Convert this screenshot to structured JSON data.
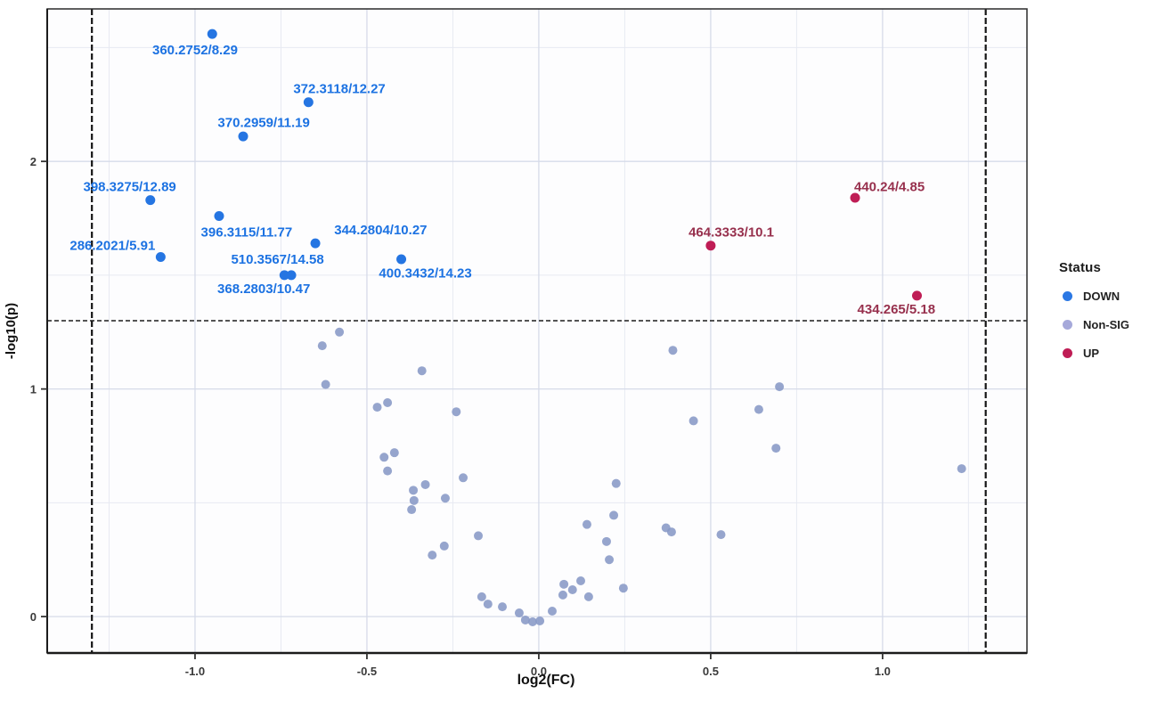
{
  "chart_data": {
    "type": "scatter",
    "title": "",
    "xlabel": "log2(FC)",
    "ylabel": "-log10(p)",
    "xlim": [
      -1.43,
      1.42
    ],
    "ylim": [
      -0.16,
      2.67
    ],
    "x_ticks": {
      "values": [
        -1.0,
        -0.5,
        0.0,
        0.5,
        1.0
      ],
      "labels": [
        "-1.0",
        "-0.5",
        "0.0",
        "0.5",
        "1.0"
      ]
    },
    "y_ticks": {
      "values": [
        0,
        1,
        2
      ],
      "labels": [
        "0",
        "1",
        "2"
      ]
    },
    "x_minor": [
      -1.25,
      -0.75,
      -0.25,
      0.25,
      0.75,
      1.25
    ],
    "y_minor": [
      0.5,
      1.5,
      2.5
    ],
    "grid": "major+minor",
    "thresholds": {
      "vlines": [
        -1.3,
        1.3
      ],
      "hline": 1.3
    },
    "legend": {
      "title": "Status",
      "position": "right",
      "items": [
        {
          "label": "DOWN",
          "color": "#2b78e4"
        },
        {
          "label": "Non-SIG",
          "color": "#a6a9da"
        },
        {
          "label": "UP",
          "color": "#bf1d55"
        }
      ]
    },
    "series": [
      {
        "name": "DOWN",
        "color": "#2575e2",
        "label_color": "#1c72e2",
        "points": [
          {
            "x": -0.95,
            "y": 2.56,
            "label": "360.2752/8.29",
            "label_x": -1.0,
            "label_y": 2.49
          },
          {
            "x": -0.67,
            "y": 2.26,
            "label": "372.3118/12.27",
            "label_x": -0.58,
            "label_y": 2.32
          },
          {
            "x": -0.86,
            "y": 2.11,
            "label": "370.2959/11.19",
            "label_x": -0.8,
            "label_y": 2.17
          },
          {
            "x": -1.13,
            "y": 1.83,
            "label": "398.3275/12.89",
            "label_x": -1.19,
            "label_y": 1.89
          },
          {
            "x": -0.93,
            "y": 1.76,
            "label": "396.3115/11.77",
            "label_x": -0.85,
            "label_y": 1.69
          },
          {
            "x": -0.65,
            "y": 1.64,
            "label": "344.2804/10.27",
            "label_x": -0.46,
            "label_y": 1.7
          },
          {
            "x": -1.1,
            "y": 1.58,
            "label": "286.2021/5.91",
            "label_x": -1.24,
            "label_y": 1.63
          },
          {
            "x": -0.4,
            "y": 1.57,
            "label": "400.3432/14.23",
            "label_x": -0.33,
            "label_y": 1.51
          },
          {
            "x": -0.74,
            "y": 1.5,
            "label": "510.3567/14.58",
            "label_x": -0.76,
            "label_y": 1.57
          },
          {
            "x": -0.72,
            "y": 1.5,
            "label": "368.2803/10.47",
            "label_x": -0.8,
            "label_y": 1.44
          }
        ]
      },
      {
        "name": "UP",
        "color": "#bf1d55",
        "label_color": "#97304d",
        "points": [
          {
            "x": 0.92,
            "y": 1.84,
            "label": "440.24/4.85",
            "label_x": 1.02,
            "label_y": 1.89
          },
          {
            "x": 0.5,
            "y": 1.63,
            "label": "464.3333/10.1",
            "label_x": 0.56,
            "label_y": 1.69
          },
          {
            "x": 1.1,
            "y": 1.41,
            "label": "434.265/5.18",
            "label_x": 1.04,
            "label_y": 1.35
          }
        ]
      },
      {
        "name": "Non-SIG",
        "color": "#8798c6",
        "points": [
          {
            "x": -0.58,
            "y": 1.25
          },
          {
            "x": -0.63,
            "y": 1.19
          },
          {
            "x": -0.62,
            "y": 1.02
          },
          {
            "x": -0.34,
            "y": 1.08
          },
          {
            "x": -0.47,
            "y": 0.92
          },
          {
            "x": -0.44,
            "y": 0.94
          },
          {
            "x": -0.24,
            "y": 0.9
          },
          {
            "x": 0.39,
            "y": 1.17
          },
          {
            "x": 0.7,
            "y": 1.01
          },
          {
            "x": 0.64,
            "y": 0.91
          },
          {
            "x": 0.45,
            "y": 0.86
          },
          {
            "x": 0.69,
            "y": 0.74
          },
          {
            "x": 1.23,
            "y": 0.65
          },
          {
            "x": -0.42,
            "y": 0.72
          },
          {
            "x": -0.45,
            "y": 0.7
          },
          {
            "x": -0.44,
            "y": 0.64
          },
          {
            "x": -0.22,
            "y": 0.61
          },
          {
            "x": -0.365,
            "y": 0.555
          },
          {
            "x": -0.33,
            "y": 0.58
          },
          {
            "x": -0.363,
            "y": 0.51
          },
          {
            "x": -0.37,
            "y": 0.47
          },
          {
            "x": -0.272,
            "y": 0.52
          },
          {
            "x": 0.225,
            "y": 0.585
          },
          {
            "x": 0.218,
            "y": 0.445
          },
          {
            "x": 0.14,
            "y": 0.405
          },
          {
            "x": -0.176,
            "y": 0.355
          },
          {
            "x": -0.275,
            "y": 0.31
          },
          {
            "x": -0.31,
            "y": 0.27
          },
          {
            "x": 0.197,
            "y": 0.33
          },
          {
            "x": 0.205,
            "y": 0.25
          },
          {
            "x": 0.246,
            "y": 0.125
          },
          {
            "x": 0.37,
            "y": 0.39
          },
          {
            "x": 0.386,
            "y": 0.372
          },
          {
            "x": 0.53,
            "y": 0.36
          },
          {
            "x": -0.166,
            "y": 0.087
          },
          {
            "x": -0.148,
            "y": 0.055
          },
          {
            "x": -0.106,
            "y": 0.043
          },
          {
            "x": -0.057,
            "y": 0.016
          },
          {
            "x": -0.039,
            "y": -0.015
          },
          {
            "x": -0.018,
            "y": -0.023
          },
          {
            "x": 0.003,
            "y": -0.019
          },
          {
            "x": 0.039,
            "y": 0.024
          },
          {
            "x": 0.073,
            "y": 0.142
          },
          {
            "x": 0.07,
            "y": 0.095
          },
          {
            "x": 0.098,
            "y": 0.118
          },
          {
            "x": 0.122,
            "y": 0.157
          },
          {
            "x": 0.145,
            "y": 0.087
          }
        ]
      }
    ]
  }
}
